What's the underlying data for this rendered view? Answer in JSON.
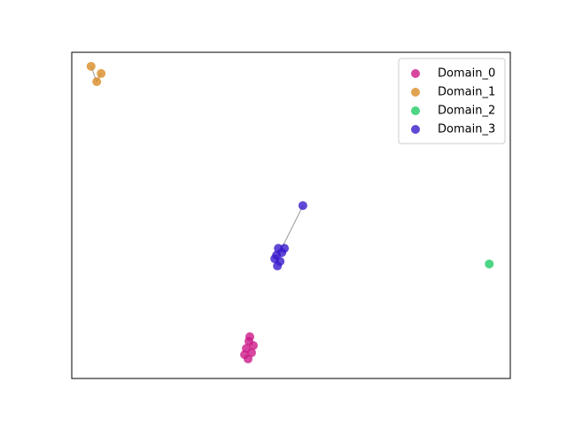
{
  "chart_data": {
    "type": "scatter",
    "xlim": [
      0,
      100
    ],
    "ylim": [
      0,
      100
    ],
    "legend": "upper right",
    "series": [
      {
        "name": "Domain_0",
        "color": "#cc1a88",
        "x": [
          40.4,
          39.8,
          41.0,
          40.2,
          39.4,
          41.4,
          40.6
        ],
        "values": [
          11.4,
          9.2,
          7.9,
          6.0,
          7.3,
          10.1,
          12.8
        ]
      },
      {
        "name": "Domain_1",
        "color": "#d98c26",
        "x": [
          4.4,
          6.7,
          5.7
        ],
        "values": [
          95.7,
          93.5,
          91.0
        ]
      },
      {
        "name": "Domain_2",
        "color": "#22cc66",
        "x": [
          95.2
        ],
        "values": [
          35.1
        ]
      },
      {
        "name": "Domain_3",
        "color": "#3a1acc",
        "x": [
          47.1,
          46.7,
          47.5,
          46.9,
          47.9,
          46.3,
          48.5,
          52.7
        ],
        "values": [
          39.9,
          37.8,
          35.9,
          34.5,
          38.6,
          36.7,
          39.9,
          53.0
        ]
      }
    ]
  }
}
